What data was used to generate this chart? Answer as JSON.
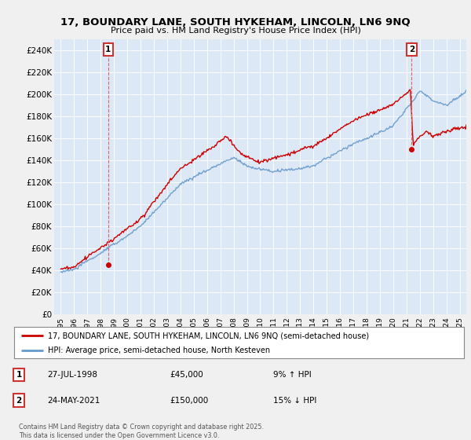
{
  "title_line1": "17, BOUNDARY LANE, SOUTH HYKEHAM, LINCOLN, LN6 9NQ",
  "title_line2": "Price paid vs. HM Land Registry's House Price Index (HPI)",
  "background_color": "#f0f0f0",
  "plot_bg_color": "#dce8f5",
  "red_color": "#cc0000",
  "blue_color": "#6699cc",
  "grid_color": "#ffffff",
  "annotation_line_color": "#dd6666",
  "legend_line1": "17, BOUNDARY LANE, SOUTH HYKEHAM, LINCOLN, LN6 9NQ (semi-detached house)",
  "legend_line2": "HPI: Average price, semi-detached house, North Kesteven",
  "footer": "Contains HM Land Registry data © Crown copyright and database right 2025.\nThis data is licensed under the Open Government Licence v3.0.",
  "ylim": [
    0,
    250000
  ],
  "yticks": [
    0,
    20000,
    40000,
    60000,
    80000,
    100000,
    120000,
    140000,
    160000,
    180000,
    200000,
    220000,
    240000
  ],
  "ytick_labels": [
    "£0",
    "£20K",
    "£40K",
    "£60K",
    "£80K",
    "£100K",
    "£120K",
    "£140K",
    "£160K",
    "£180K",
    "£200K",
    "£220K",
    "£240K"
  ],
  "ann1_x": 1998.57,
  "ann1_y": 45000,
  "ann2_x": 2021.39,
  "ann2_y": 150000,
  "xmin": 1995.0,
  "xmax": 2025.5
}
